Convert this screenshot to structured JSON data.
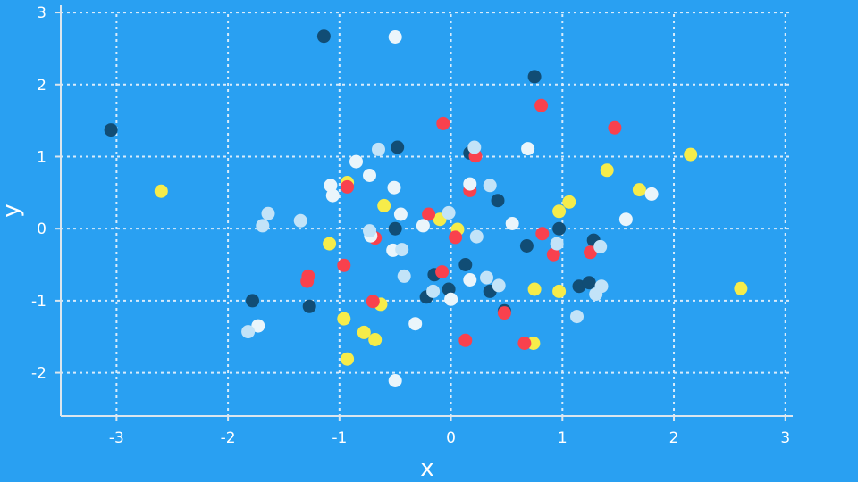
{
  "chart_data": {
    "type": "scatter",
    "title": "",
    "xlabel": "x",
    "ylabel": "y",
    "xlim": [
      -3.5,
      3.05
    ],
    "ylim": [
      -2.6,
      3.1
    ],
    "xticks": [
      -3,
      -2,
      -1,
      0,
      1,
      2,
      3
    ],
    "yticks": [
      -2,
      -1,
      0,
      1,
      2,
      3
    ],
    "grid": true,
    "background_color": "#29a0f2",
    "series": [
      {
        "color": "#114d75",
        "points": [
          [
            -3.05,
            1.37
          ],
          [
            -1.14,
            2.67
          ],
          [
            0.75,
            2.11
          ],
          [
            -0.48,
            1.13
          ],
          [
            0.17,
            1.05
          ],
          [
            0.42,
            0.39
          ],
          [
            -0.5,
            0.0
          ],
          [
            0.97,
            0.0
          ],
          [
            0.68,
            -0.24
          ],
          [
            1.28,
            -0.16
          ],
          [
            -1.78,
            -1.0
          ],
          [
            -1.27,
            -1.08
          ],
          [
            -0.15,
            -0.64
          ],
          [
            0.13,
            -0.5
          ],
          [
            -0.02,
            -0.84
          ],
          [
            0.35,
            -0.87
          ],
          [
            -0.22,
            -0.95
          ],
          [
            0.48,
            -1.14
          ],
          [
            1.15,
            -0.8
          ],
          [
            1.24,
            -0.75
          ]
        ]
      },
      {
        "color": "#f6ec4a",
        "points": [
          [
            -2.6,
            0.52
          ],
          [
            2.15,
            1.03
          ],
          [
            1.4,
            0.81
          ],
          [
            -0.93,
            0.64
          ],
          [
            -0.6,
            0.32
          ],
          [
            1.06,
            0.37
          ],
          [
            0.97,
            0.24
          ],
          [
            1.69,
            0.54
          ],
          [
            -0.1,
            0.13
          ],
          [
            0.06,
            -0.01
          ],
          [
            -1.09,
            -0.21
          ],
          [
            0.75,
            -0.84
          ],
          [
            0.97,
            -0.87
          ],
          [
            2.6,
            -0.83
          ],
          [
            -0.63,
            -1.05
          ],
          [
            -0.96,
            -1.25
          ],
          [
            -0.78,
            -1.44
          ],
          [
            -0.68,
            -1.54
          ],
          [
            0.74,
            -1.59
          ],
          [
            -0.93,
            -1.81
          ]
        ]
      },
      {
        "color": "#f9414d",
        "points": [
          [
            0.81,
            1.71
          ],
          [
            -0.07,
            1.46
          ],
          [
            1.47,
            1.4
          ],
          [
            0.22,
            1.01
          ],
          [
            0.17,
            0.53
          ],
          [
            -0.93,
            0.58
          ],
          [
            -0.2,
            0.2
          ],
          [
            0.04,
            -0.12
          ],
          [
            -0.68,
            -0.13
          ],
          [
            0.82,
            -0.07
          ],
          [
            0.92,
            -0.36
          ],
          [
            1.25,
            -0.33
          ],
          [
            -0.96,
            -0.51
          ],
          [
            -0.08,
            -0.6
          ],
          [
            -1.28,
            -0.66
          ],
          [
            -1.29,
            -0.73
          ],
          [
            -0.7,
            -1.01
          ],
          [
            0.48,
            -1.17
          ],
          [
            0.13,
            -1.55
          ],
          [
            0.66,
            -1.59
          ]
        ]
      },
      {
        "color": "#eaf5fb",
        "points": [
          [
            -0.5,
            2.66
          ],
          [
            0.69,
            1.11
          ],
          [
            -0.85,
            0.93
          ],
          [
            -0.73,
            0.74
          ],
          [
            -1.08,
            0.6
          ],
          [
            -0.51,
            0.57
          ],
          [
            0.17,
            0.62
          ],
          [
            -1.06,
            0.46
          ],
          [
            -0.45,
            0.2
          ],
          [
            -0.25,
            0.04
          ],
          [
            -0.72,
            -0.1
          ],
          [
            0.55,
            0.07
          ],
          [
            1.57,
            0.13
          ],
          [
            1.8,
            0.48
          ],
          [
            -0.52,
            -0.3
          ],
          [
            0.0,
            -0.98
          ],
          [
            0.17,
            -0.71
          ],
          [
            -1.73,
            -1.35
          ],
          [
            -0.32,
            -1.32
          ],
          [
            -0.5,
            -2.11
          ]
        ]
      },
      {
        "color": "#c2e3f8",
        "points": [
          [
            -0.65,
            1.1
          ],
          [
            0.21,
            1.13
          ],
          [
            0.35,
            0.6
          ],
          [
            -1.64,
            0.21
          ],
          [
            -1.35,
            0.11
          ],
          [
            -0.02,
            0.22
          ],
          [
            -1.69,
            0.04
          ],
          [
            -0.73,
            -0.03
          ],
          [
            0.23,
            -0.11
          ],
          [
            -0.44,
            -0.29
          ],
          [
            0.95,
            -0.21
          ],
          [
            1.34,
            -0.25
          ],
          [
            -0.42,
            -0.66
          ],
          [
            0.32,
            -0.68
          ],
          [
            0.43,
            -0.79
          ],
          [
            1.35,
            -0.8
          ],
          [
            1.3,
            -0.91
          ],
          [
            1.13,
            -1.22
          ],
          [
            -1.82,
            -1.43
          ],
          [
            -0.16,
            -0.87
          ]
        ]
      }
    ]
  }
}
